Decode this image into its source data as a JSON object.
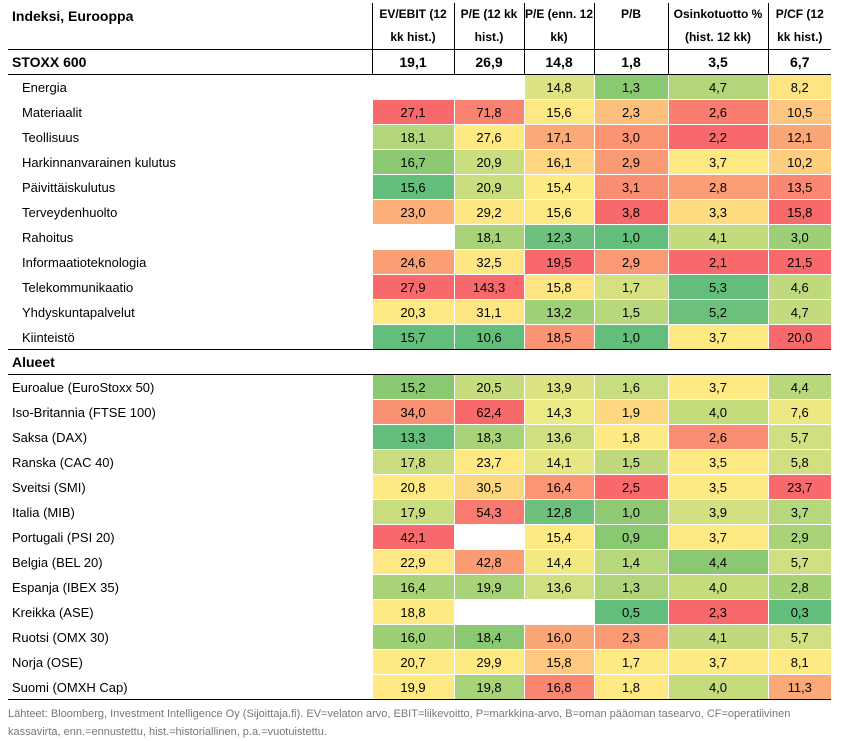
{
  "header": {
    "title": "Indeksi, Eurooppa",
    "columns": [
      "EV/EBIT (12 kk hist.)",
      "P/E (12 kk hist.)",
      "P/E (enn. 12 kk)",
      "P/B",
      "Osinkotuotto % (hist. 12 kk)",
      "P/CF (12 kk hist.)"
    ]
  },
  "summary": {
    "label": "STOXX 600",
    "values": [
      "19,1",
      "26,9",
      "14,8",
      "1,8",
      "3,5",
      "6,7"
    ]
  },
  "sectors": [
    {
      "label": "Energia",
      "values": [
        "",
        "",
        "14,8",
        "1,3",
        "4,7",
        "8,2"
      ],
      "colors": [
        "#ffffff",
        "#ffffff",
        "#dbe383",
        "#8ac972",
        "#b4d67a",
        "#fee483"
      ]
    },
    {
      "label": "Materiaalit",
      "values": [
        "27,1",
        "71,8",
        "15,6",
        "2,3",
        "2,6",
        "10,5"
      ],
      "colors": [
        "#f8696b",
        "#f98370",
        "#fee883",
        "#fdc07c",
        "#f97c6e",
        "#fdc57d"
      ]
    },
    {
      "label": "Teollisuus",
      "values": [
        "18,1",
        "27,6",
        "17,1",
        "3,0",
        "2,2",
        "12,1"
      ],
      "colors": [
        "#b3d67a",
        "#fee983",
        "#fca978",
        "#fa9473",
        "#f8696b",
        "#fba677"
      ]
    },
    {
      "label": "Harkinnanvarainen kulutus",
      "values": [
        "16,7",
        "20,9",
        "16,1",
        "2,9",
        "3,7",
        "10,2"
      ],
      "colors": [
        "#8ac972",
        "#cadd7f",
        "#fed780",
        "#fa9a74",
        "#fee983",
        "#fece7f"
      ]
    },
    {
      "label": "Päivittäiskulutus",
      "values": [
        "15,6",
        "20,9",
        "15,4",
        "3,1",
        "2,8",
        "13,5"
      ],
      "colors": [
        "#63be7b",
        "#cadd7f",
        "#fee983",
        "#f98e72",
        "#fb9e75",
        "#f98771"
      ]
    },
    {
      "label": "Terveydenhuolto",
      "values": [
        "23,0",
        "29,2",
        "15,6",
        "3,8",
        "3,3",
        "15,8"
      ],
      "colors": [
        "#fcaf79",
        "#fee783",
        "#fee883",
        "#f8696b",
        "#fedd82",
        "#f8696b"
      ]
    },
    {
      "label": "Rahoitus",
      "values": [
        "",
        "18,1",
        "12,3",
        "1,0",
        "4,1",
        "3,0"
      ],
      "colors": [
        "#ffffff",
        "#a8d378",
        "#6dc17c",
        "#63be7b",
        "#c2db7d",
        "#9ccf76"
      ]
    },
    {
      "label": "Informaatioteknologia",
      "values": [
        "24,6",
        "32,5",
        "19,5",
        "2,9",
        "2,1",
        "21,5"
      ],
      "colors": [
        "#fb9f75",
        "#fee683",
        "#f8696b",
        "#fa9a74",
        "#f8696b",
        "#f8696b"
      ]
    },
    {
      "label": "Telekommunikaatio",
      "values": [
        "27,9",
        "143,3",
        "15,8",
        "1,7",
        "5,3",
        "4,6"
      ],
      "colors": [
        "#f8696b",
        "#f8696b",
        "#fee583",
        "#d5e181",
        "#63be7b",
        "#bfda7d"
      ]
    },
    {
      "label": "Yhdyskuntapalvelut",
      "values": [
        "20,3",
        "31,1",
        "13,2",
        "1,5",
        "5,2",
        "4,7"
      ],
      "colors": [
        "#fee983",
        "#fee683",
        "#9fd076",
        "#b9d87c",
        "#6bc17b",
        "#c1db7d"
      ]
    },
    {
      "label": "Kiinteistö",
      "values": [
        "15,7",
        "10,6",
        "18,5",
        "1,0",
        "3,7",
        "20,0"
      ],
      "colors": [
        "#63be7b",
        "#63be7b",
        "#fa9473",
        "#63be7b",
        "#fee983",
        "#f8696b"
      ]
    }
  ],
  "regions_title": "Alueet",
  "regions": [
    {
      "label": "Euroalue (EuroStoxx 50)",
      "values": [
        "15,2",
        "20,5",
        "13,9",
        "1,6",
        "3,7",
        "4,4"
      ],
      "colors": [
        "#8ac972",
        "#c6dc7f",
        "#dbe383",
        "#c8dc80",
        "#fee983",
        "#b9d87c"
      ]
    },
    {
      "label": "Iso-Britannia (FTSE 100)",
      "values": [
        "34,0",
        "62,4",
        "14,3",
        "1,9",
        "4,0",
        "7,6"
      ],
      "colors": [
        "#fa9172",
        "#f8696b",
        "#ecea84",
        "#fed880",
        "#c5dc7d",
        "#eee883"
      ]
    },
    {
      "label": "Saksa (DAX)",
      "values": [
        "13,3",
        "18,3",
        "13,6",
        "1,8",
        "2,6",
        "5,7"
      ],
      "colors": [
        "#63be7b",
        "#a8d378",
        "#cfdf81",
        "#fee983",
        "#f98e72",
        "#d0df81"
      ]
    },
    {
      "label": "Ranska (CAC 40)",
      "values": [
        "17,8",
        "23,7",
        "14,1",
        "1,5",
        "3,5",
        "5,8"
      ],
      "colors": [
        "#c9dd7f",
        "#fee983",
        "#e6e683",
        "#c0d97d",
        "#fee983",
        "#d1df81"
      ]
    },
    {
      "label": "Sveitsi (SMI)",
      "values": [
        "20,8",
        "30,5",
        "16,4",
        "2,5",
        "3,5",
        "23,7"
      ],
      "colors": [
        "#fee983",
        "#fed880",
        "#fa9673",
        "#f8696b",
        "#fee983",
        "#f8696b"
      ]
    },
    {
      "label": "Italia (MIB)",
      "values": [
        "17,9",
        "54,3",
        "12,8",
        "1,0",
        "3,9",
        "3,7"
      ],
      "colors": [
        "#c9dd7f",
        "#f97a6f",
        "#6dc17c",
        "#8fca73",
        "#d3e081",
        "#b6d77b"
      ]
    },
    {
      "label": "Portugali (PSI 20)",
      "values": [
        "42,1",
        "",
        "15,4",
        "0,9",
        "3,7",
        "2,9"
      ],
      "colors": [
        "#f8696b",
        "#ffffff",
        "#fee983",
        "#8ac972",
        "#fee983",
        "#a9d378"
      ]
    },
    {
      "label": "Belgia (BEL 20)",
      "values": [
        "22,9",
        "42,8",
        "14,4",
        "1,4",
        "4,4",
        "5,7"
      ],
      "colors": [
        "#fee883",
        "#fb9c75",
        "#f3e983",
        "#b6d77b",
        "#8ac972",
        "#d0df81"
      ]
    },
    {
      "label": "Espanja (IBEX 35)",
      "values": [
        "16,4",
        "19,9",
        "13,6",
        "1,3",
        "4,0",
        "2,8"
      ],
      "colors": [
        "#a9d378",
        "#a8d378",
        "#cfdf81",
        "#afd47a",
        "#c5dc7d",
        "#a6d277"
      ]
    },
    {
      "label": "Kreikka (ASE)",
      "values": [
        "18,8",
        "",
        "",
        "0,5",
        "2,3",
        "0,3"
      ],
      "colors": [
        "#fee983",
        "#ffffff",
        "#ffffff",
        "#63be7b",
        "#f8696b",
        "#63be7b"
      ]
    },
    {
      "label": "Ruotsi (OMX 30)",
      "values": [
        "16,0",
        "18,4",
        "16,0",
        "2,3",
        "4,1",
        "5,7"
      ],
      "colors": [
        "#9ccf76",
        "#8ac972",
        "#fba677",
        "#fa9a74",
        "#bfda7d",
        "#d0df81"
      ]
    },
    {
      "label": "Norja (OSE)",
      "values": [
        "20,7",
        "29,9",
        "15,8",
        "1,7",
        "3,7",
        "8,1"
      ],
      "colors": [
        "#fee983",
        "#fee983",
        "#fec97e",
        "#fee983",
        "#fee983",
        "#fee983"
      ]
    },
    {
      "label": "Suomi (OMXH Cap)",
      "values": [
        "19,9",
        "19,8",
        "16,8",
        "1,8",
        "4,0",
        "11,3"
      ],
      "colors": [
        "#fee983",
        "#a8d378",
        "#f98771",
        "#fee983",
        "#c5dc7d",
        "#fca978"
      ]
    }
  ],
  "footer": "Lähteet: Bloomberg, Investment Intelligence Oy (Sijoittaja.fi). EV=velaton arvo, EBIT=liikevoitto, P=markkina-arvo, B=oman pääoman tasearvo, CF=operatiivinen kassavirta, enn.=ennustettu, hist.=historiallinen, p.a.=vuotuistettu."
}
